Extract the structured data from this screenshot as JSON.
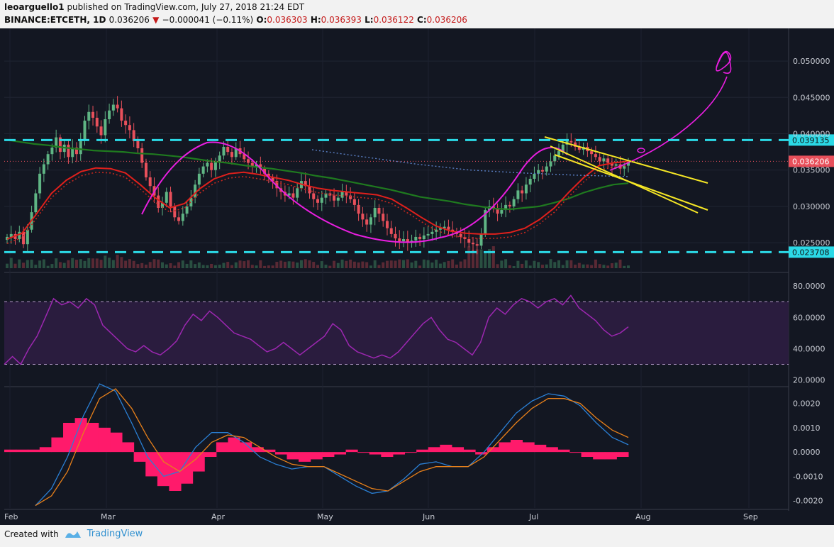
{
  "header": {
    "author": "leoarguello1",
    "published_text": "published on TradingView.com, July 27, 2018 21:24 EDT",
    "symbol": "BINANCE:ETCETH, 1D",
    "last": "0.036206",
    "change": "−0.000041 (−0.11%)",
    "o_label": "O:",
    "o_value": "0.036303",
    "h_label": "H:",
    "h_value": "0.036393",
    "l_label": "L:",
    "l_value": "0.036122",
    "c_label": "C:",
    "c_value": "0.036206"
  },
  "footer": {
    "created_with": "Created with",
    "brand": "TradingView"
  },
  "colors": {
    "background": "#131722",
    "up": "#5fb584",
    "down": "#e8505b",
    "sma_green": "#1f7a1f",
    "ema_red": "#e0201c",
    "rsi": "#9c27b0",
    "macd_hist": "#ff1a6b",
    "macd_line": "#2a7fd4",
    "signal_line": "#e8801a",
    "level_line": "#2bd9e6",
    "channel": "#f5e625",
    "arc": "#e91ee0"
  },
  "chart_data": [
    {
      "type": "candlestick",
      "title": "BINANCE:ETCETH, 1D",
      "x_ticks": [
        "Feb",
        "Mar",
        "Apr",
        "May",
        "Jun",
        "Jul",
        "Aug",
        "Sep"
      ],
      "y_ticks": [
        "0.050000",
        "0.045000",
        "0.040000",
        "0.035000",
        "0.030000",
        "0.025000"
      ],
      "ylim": [
        0.0215,
        0.0545
      ],
      "levels": [
        {
          "value": 0.039135,
          "label": "0.039135"
        },
        {
          "value": 0.023708,
          "label": "0.023708"
        }
      ],
      "last_price": {
        "value": 0.036206,
        "label": "0.036206"
      },
      "close_series": [
        0.0258,
        0.0262,
        0.0255,
        0.0265,
        0.0248,
        0.0268,
        0.0292,
        0.0318,
        0.0345,
        0.0358,
        0.0372,
        0.0381,
        0.0395,
        0.0375,
        0.0385,
        0.0368,
        0.0381,
        0.0372,
        0.0392,
        0.0418,
        0.043,
        0.0422,
        0.041,
        0.0398,
        0.042,
        0.0432,
        0.044,
        0.0435,
        0.0418,
        0.0412,
        0.0405,
        0.039,
        0.038,
        0.036,
        0.034,
        0.0328,
        0.0315,
        0.0298,
        0.0305,
        0.032,
        0.03,
        0.0285,
        0.028,
        0.029,
        0.03,
        0.0312,
        0.033,
        0.0345,
        0.0355,
        0.036,
        0.035,
        0.0362,
        0.037,
        0.0382,
        0.0375,
        0.0368,
        0.038,
        0.0372,
        0.0365,
        0.036,
        0.0355,
        0.0358,
        0.0352,
        0.0345,
        0.034,
        0.0335,
        0.0325,
        0.032,
        0.0315,
        0.0318,
        0.0312,
        0.0325,
        0.0335,
        0.0328,
        0.0318,
        0.031,
        0.0305,
        0.0312,
        0.0318,
        0.0315,
        0.0308,
        0.0312,
        0.032,
        0.0315,
        0.031,
        0.0302,
        0.029,
        0.0282,
        0.0275,
        0.0285,
        0.0298,
        0.029,
        0.028,
        0.027,
        0.0262,
        0.0256,
        0.0252,
        0.0255,
        0.025,
        0.0253,
        0.0258,
        0.0255,
        0.026,
        0.0262,
        0.0265,
        0.0268,
        0.027,
        0.0272,
        0.0268,
        0.0265,
        0.0262,
        0.0258,
        0.0255,
        0.025,
        0.0248,
        0.0246,
        0.0262,
        0.0295,
        0.03,
        0.0298,
        0.029,
        0.0295,
        0.0302,
        0.03,
        0.031,
        0.0322,
        0.0318,
        0.033,
        0.0338,
        0.0345,
        0.035,
        0.0348,
        0.0355,
        0.0362,
        0.037,
        0.0376,
        0.0385,
        0.039,
        0.0388,
        0.0382,
        0.0378,
        0.0382,
        0.0376,
        0.0372,
        0.0368,
        0.0362,
        0.0366,
        0.036,
        0.0356,
        0.0358,
        0.0352,
        0.0356,
        0.0362
      ],
      "ma_150_green": [
        0.0392,
        0.0389,
        0.0386,
        0.0384,
        0.0381,
        0.0379,
        0.0377,
        0.0376,
        0.0375,
        0.0373,
        0.0372,
        0.037,
        0.0368,
        0.0365,
        0.0362,
        0.036,
        0.0357,
        0.0354,
        0.0352,
        0.0349,
        0.0346,
        0.0342,
        0.0339,
        0.0335,
        0.0331,
        0.0327,
        0.0323,
        0.0318,
        0.0313,
        0.031,
        0.0307,
        0.0303,
        0.03,
        0.0297,
        0.0296,
        0.0298,
        0.03,
        0.0305,
        0.0311,
        0.0319,
        0.0325,
        0.033,
        0.0332
      ],
      "ema_red": [
        0.0255,
        0.0263,
        0.029,
        0.0318,
        0.0336,
        0.0348,
        0.0353,
        0.0352,
        0.0346,
        0.033,
        0.0312,
        0.0298,
        0.0304,
        0.0324,
        0.0338,
        0.0345,
        0.0347,
        0.0344,
        0.034,
        0.0336,
        0.033,
        0.0325,
        0.0322,
        0.032,
        0.0318,
        0.0316,
        0.031,
        0.0298,
        0.0285,
        0.0273,
        0.0266,
        0.0263,
        0.0262,
        0.0262,
        0.0264,
        0.027,
        0.0282,
        0.0298,
        0.032,
        0.034,
        0.0356,
        0.036,
        0.0362
      ]
    },
    {
      "type": "line",
      "name": "RSI",
      "y_ticks": [
        "80.0000",
        "60.0000",
        "40.0000",
        "20.0000"
      ],
      "ylim": [
        18,
        86
      ],
      "bands": [
        70,
        30
      ],
      "values": [
        30,
        35,
        30,
        40,
        48,
        60,
        72,
        68,
        70,
        66,
        72,
        68,
        55,
        50,
        45,
        40,
        38,
        42,
        38,
        36,
        40,
        45,
        55,
        62,
        58,
        64,
        60,
        55,
        50,
        48,
        46,
        42,
        38,
        40,
        44,
        40,
        36,
        40,
        44,
        48,
        56,
        52,
        42,
        38,
        36,
        34,
        36,
        34,
        38,
        44,
        50,
        56,
        60,
        52,
        46,
        44,
        40,
        36,
        44,
        60,
        66,
        62,
        68,
        72,
        70,
        66,
        70,
        72,
        68,
        74,
        66,
        62,
        58,
        52,
        48,
        50,
        54
      ]
    },
    {
      "type": "line",
      "name": "MACD",
      "y_ticks": [
        "0.0020",
        "0.0010",
        "0.0000",
        "-0.0010",
        "-0.0020"
      ],
      "ylim": [
        -0.0023,
        0.0026
      ],
      "histogram": [
        0.0001,
        0.0001,
        0.0001,
        0.0002,
        0.0006,
        0.0012,
        0.0014,
        0.0012,
        0.001,
        0.0008,
        0.0004,
        -0.0004,
        -0.001,
        -0.0014,
        -0.0016,
        -0.0013,
        -0.0008,
        -0.0002,
        0.0004,
        0.0006,
        0.0004,
        0.0002,
        0.0001,
        -0.0001,
        -0.0003,
        -0.0004,
        -0.0003,
        -0.0002,
        -0.0001,
        0.0001,
        0.0,
        -0.0001,
        -0.0002,
        -0.0001,
        0.0,
        0.0001,
        0.0002,
        0.0003,
        0.0002,
        0.0001,
        -0.0001,
        0.0002,
        0.0004,
        0.0005,
        0.0004,
        0.0003,
        0.0002,
        0.0001,
        0.0,
        -0.0002,
        -0.0003,
        -0.0003,
        -0.0002
      ],
      "macd_line": [
        -0.0022,
        -0.0015,
        -0.0002,
        0.0015,
        0.0028,
        0.0025,
        0.0012,
        -0.0002,
        -0.001,
        -0.0008,
        0.0002,
        0.0008,
        0.0008,
        0.0004,
        -0.0002,
        -0.0005,
        -0.0007,
        -0.0006,
        -0.0006,
        -0.001,
        -0.0014,
        -0.0017,
        -0.0016,
        -0.0011,
        -0.0005,
        -0.0004,
        -0.0006,
        -0.0006,
        0.0,
        0.0008,
        0.0016,
        0.0021,
        0.0024,
        0.0023,
        0.0019,
        0.0012,
        0.0006,
        0.0003
      ],
      "signal_line": [
        -0.0022,
        -0.0018,
        -0.0008,
        0.0008,
        0.0022,
        0.0026,
        0.0018,
        0.0006,
        -0.0004,
        -0.0008,
        -0.0003,
        0.0004,
        0.0007,
        0.0006,
        0.0002,
        -0.0002,
        -0.0005,
        -0.0006,
        -0.0006,
        -0.0009,
        -0.0012,
        -0.0015,
        -0.0016,
        -0.0012,
        -0.0008,
        -0.0006,
        -0.0006,
        -0.0006,
        -0.0002,
        0.0005,
        0.0012,
        0.0018,
        0.0022,
        0.0022,
        0.002,
        0.0014,
        0.0009,
        0.0006
      ]
    }
  ]
}
